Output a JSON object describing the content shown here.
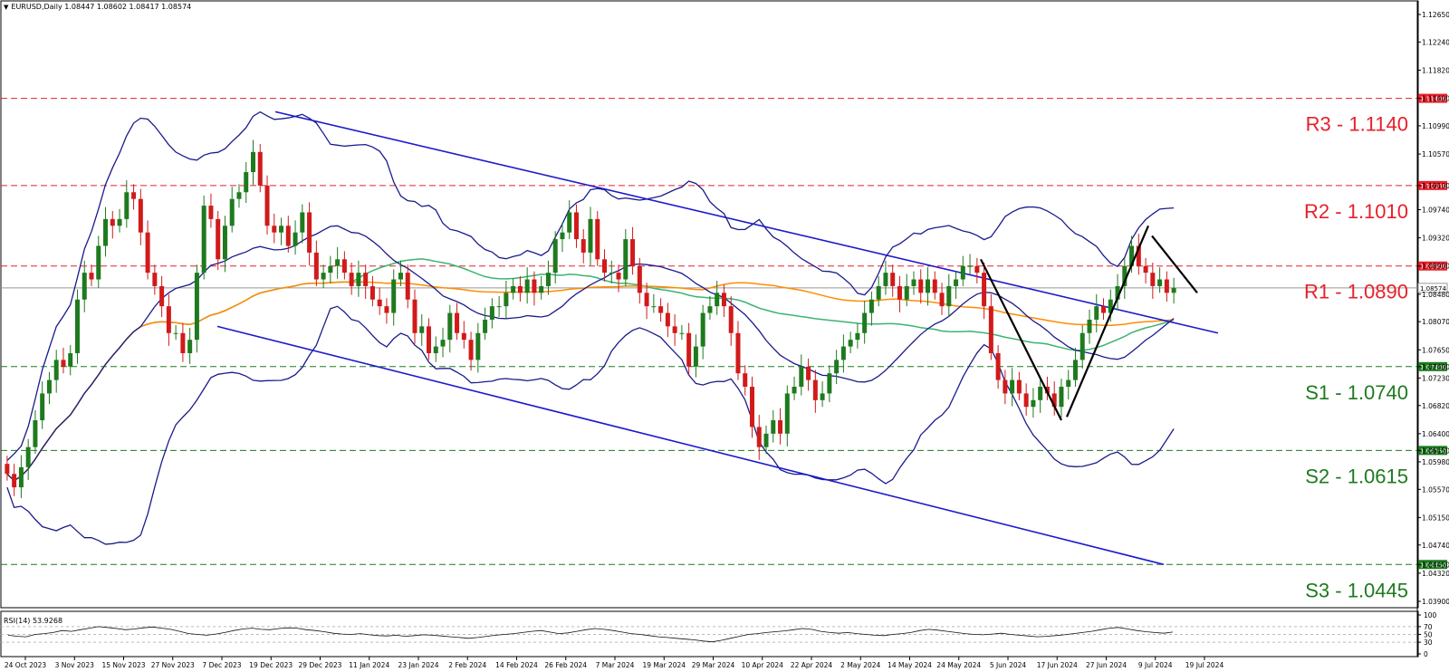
{
  "header": {
    "symbol": "EURUSD,Daily",
    "ohlc": "1.08447 1.08602 1.08417 1.08574"
  },
  "rsi_header": "RSI(14) 53.9268",
  "colors": {
    "resistance": "#e8202a",
    "support": "#1e7a1e",
    "channel": "#1a1acc",
    "bollinger": "#1a1a8c",
    "ma_green": "#3cb371",
    "ma_orange": "#ff8c00",
    "candle_up": "#1e7a1e",
    "candle_down": "#d11a1a",
    "current_price": "#999999"
  },
  "chart_data": [
    {
      "type": "candlestick",
      "title": "",
      "symbol": "EURUSD",
      "timeframe": "Daily",
      "price_axis": {
        "ylim": [
          1.039,
          1.066
        ],
        "ticks": [
          "1.12650",
          "1.12240",
          "1.11820",
          "1.11400",
          "1.10990",
          "1.10570",
          "1.10100",
          "1.09740",
          "1.09320",
          "1.08900",
          "1.08574",
          "1.08480",
          "1.08070",
          "1.07650",
          "1.07400",
          "1.07230",
          "1.06820",
          "1.06400",
          "1.06150",
          "1.05980",
          "1.05570",
          "1.05150",
          "1.04740",
          "1.04450",
          "1.04320",
          "1.03900"
        ],
        "tick_values": [
          1.1265,
          1.1224,
          1.1182,
          1.114,
          1.1099,
          1.1057,
          1.101,
          1.0974,
          1.0932,
          1.089,
          1.08574,
          1.0848,
          1.0807,
          1.0765,
          1.074,
          1.0723,
          1.0682,
          1.064,
          1.0615,
          1.0598,
          1.0557,
          1.0515,
          1.0474,
          1.0445,
          1.0432,
          1.039
        ]
      },
      "date_ticks": [
        "24 Oct 2023",
        "3 Nov 2023",
        "15 Nov 2023",
        "27 Nov 2023",
        "7 Dec 2023",
        "19 Dec 2023",
        "29 Dec 2023",
        "11 Jan 2024",
        "23 Jan 2024",
        "2 Feb 2024",
        "14 Feb 2024",
        "26 Feb 2024",
        "7 Mar 2024",
        "19 Mar 2024",
        "29 Mar 2024",
        "10 Apr 2024",
        "22 Apr 2024",
        "2 May 2024",
        "14 May 2024",
        "24 May 2024",
        "5 Jun 2024",
        "17 Jun 2024",
        "27 Jun 2024",
        "9 Jul 2024",
        "19 Jul 2024"
      ],
      "current_price": 1.08574,
      "levels": [
        {
          "name": "R3",
          "label": "R3 - 1.1140",
          "tag": "1.11400",
          "value": 1.114,
          "kind": "resistance"
        },
        {
          "name": "R2",
          "label": "R2 - 1.1010",
          "tag": "1.10100",
          "value": 1.101,
          "kind": "resistance"
        },
        {
          "name": "R1",
          "label": "R1 - 1.0890",
          "tag": "1.08900",
          "value": 1.089,
          "kind": "resistance"
        },
        {
          "name": "S1",
          "label": "S1 - 1.0740",
          "tag": "1.07400",
          "value": 1.074,
          "kind": "support"
        },
        {
          "name": "S2",
          "label": "S2 - 1.0615",
          "tag": "1.06150",
          "value": 1.0615,
          "kind": "support"
        },
        {
          "name": "S3",
          "label": "S3 - 1.0445",
          "tag": "1.04450",
          "value": 1.0445,
          "kind": "support"
        }
      ],
      "candles_close": [
        1.058,
        1.056,
        1.059,
        1.062,
        1.066,
        1.07,
        1.072,
        1.075,
        1.074,
        1.076,
        1.084,
        1.088,
        1.087,
        1.092,
        1.096,
        1.095,
        1.096,
        1.1,
        1.099,
        1.094,
        1.088,
        1.086,
        1.083,
        1.079,
        1.079,
        1.076,
        1.078,
        1.088,
        1.098,
        1.096,
        1.09,
        1.095,
        1.099,
        1.1,
        1.103,
        1.106,
        1.101,
        1.095,
        1.094,
        1.095,
        1.092,
        1.094,
        1.097,
        1.091,
        1.087,
        1.088,
        1.089,
        1.09,
        1.088,
        1.086,
        1.088,
        1.086,
        1.084,
        1.083,
        1.082,
        1.087,
        1.088,
        1.084,
        1.079,
        1.08,
        1.076,
        1.077,
        1.078,
        1.082,
        1.079,
        1.078,
        1.075,
        1.079,
        1.081,
        1.083,
        1.083,
        1.085,
        1.086,
        1.085,
        1.087,
        1.085,
        1.086,
        1.088,
        1.093,
        1.094,
        1.097,
        1.093,
        1.091,
        1.096,
        1.09,
        1.088,
        1.088,
        1.087,
        1.093,
        1.089,
        1.085,
        1.083,
        1.083,
        1.082,
        1.08,
        1.079,
        1.079,
        1.074,
        1.077,
        1.082,
        1.083,
        1.085,
        1.083,
        1.079,
        1.073,
        1.071,
        1.065,
        1.062,
        1.064,
        1.066,
        1.064,
        1.07,
        1.071,
        1.074,
        1.072,
        1.069,
        1.07,
        1.073,
        1.075,
        1.077,
        1.078,
        1.079,
        1.082,
        1.084,
        1.086,
        1.088,
        1.086,
        1.084,
        1.086,
        1.087,
        1.085,
        1.087,
        1.085,
        1.083,
        1.086,
        1.087,
        1.089,
        1.089,
        1.088,
        1.083,
        1.076,
        1.072,
        1.07,
        1.072,
        1.07,
        1.068,
        1.069,
        1.071,
        1.07,
        1.068,
        1.071,
        1.072,
        1.075,
        1.079,
        1.081,
        1.083,
        1.082,
        1.084,
        1.086,
        1.089,
        1.092,
        1.089,
        1.088,
        1.086,
        1.087,
        1.085,
        1.08574
      ],
      "channel": {
        "upper": [
          [
            1.112,
            1.079
          ]
        ],
        "lower": [
          [
            1.08,
            1.0445
          ]
        ]
      },
      "moving_averages": [
        "green",
        "orange"
      ],
      "bollinger_bands": true
    },
    {
      "type": "line",
      "title": "",
      "name": "RSI(14)",
      "value": 53.9268,
      "ylim": [
        0,
        100
      ],
      "ticks": [
        "100",
        "70",
        "50",
        "30",
        "0"
      ],
      "tick_values": [
        100,
        70,
        50,
        30,
        0
      ],
      "values": [
        48,
        45,
        44,
        50,
        52,
        55,
        60,
        58,
        62,
        66,
        70,
        68,
        65,
        62,
        64,
        67,
        69,
        66,
        63,
        58,
        52,
        50,
        48,
        51,
        55,
        60,
        64,
        66,
        63,
        62,
        65,
        67,
        66,
        62,
        60,
        57,
        53,
        51,
        50,
        52,
        49,
        47,
        46,
        48,
        45,
        47,
        49,
        48,
        46,
        44,
        42,
        40,
        42,
        45,
        48,
        50,
        52,
        55,
        58,
        60,
        56,
        52,
        54,
        58,
        62,
        65,
        63,
        60,
        56,
        52,
        50,
        47,
        44,
        42,
        40,
        38,
        36,
        33,
        31,
        35,
        40,
        45,
        50,
        52,
        55,
        57,
        59,
        62,
        65,
        63,
        58,
        55,
        53,
        55,
        52,
        50,
        48,
        47,
        50,
        52,
        55,
        60,
        63,
        61,
        58,
        55,
        52,
        50,
        49,
        51,
        53,
        50,
        48,
        46,
        44,
        45,
        47,
        49,
        52,
        55,
        58,
        62,
        66,
        68,
        64,
        60,
        57,
        55,
        53,
        56
      ]
    }
  ]
}
